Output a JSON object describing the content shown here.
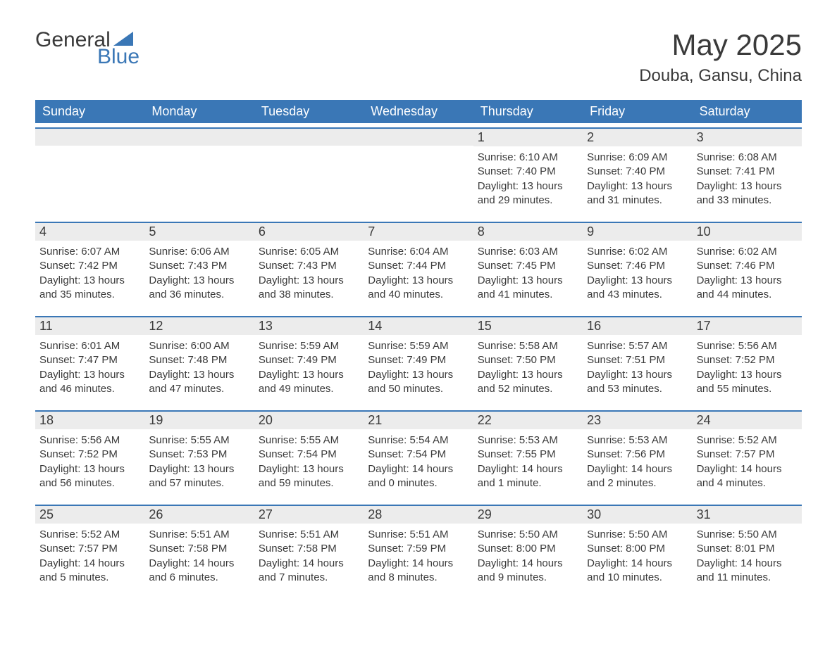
{
  "brand": {
    "text1": "General",
    "text2": "Blue",
    "text1_color": "#3a3a3a",
    "text2_color": "#3a77b6",
    "triangle_color": "#3a77b6"
  },
  "header": {
    "title": "May 2025",
    "location": "Douba, Gansu, China"
  },
  "colors": {
    "header_bg": "#3a77b6",
    "header_text": "#ffffff",
    "day_bar_bg": "#ececec",
    "day_bar_border": "#3a77b6",
    "text": "#3a3a3a",
    "page_bg": "#ffffff"
  },
  "typography": {
    "title_fontsize": 42,
    "location_fontsize": 24,
    "weekday_fontsize": 18,
    "daynum_fontsize": 18,
    "detail_fontsize": 15
  },
  "calendar": {
    "type": "table",
    "weekdays": [
      "Sunday",
      "Monday",
      "Tuesday",
      "Wednesday",
      "Thursday",
      "Friday",
      "Saturday"
    ],
    "first_weekday_index": 4,
    "days": [
      {
        "n": 1,
        "sunrise": "6:10 AM",
        "sunset": "7:40 PM",
        "daylight": "13 hours and 29 minutes."
      },
      {
        "n": 2,
        "sunrise": "6:09 AM",
        "sunset": "7:40 PM",
        "daylight": "13 hours and 31 minutes."
      },
      {
        "n": 3,
        "sunrise": "6:08 AM",
        "sunset": "7:41 PM",
        "daylight": "13 hours and 33 minutes."
      },
      {
        "n": 4,
        "sunrise": "6:07 AM",
        "sunset": "7:42 PM",
        "daylight": "13 hours and 35 minutes."
      },
      {
        "n": 5,
        "sunrise": "6:06 AM",
        "sunset": "7:43 PM",
        "daylight": "13 hours and 36 minutes."
      },
      {
        "n": 6,
        "sunrise": "6:05 AM",
        "sunset": "7:43 PM",
        "daylight": "13 hours and 38 minutes."
      },
      {
        "n": 7,
        "sunrise": "6:04 AM",
        "sunset": "7:44 PM",
        "daylight": "13 hours and 40 minutes."
      },
      {
        "n": 8,
        "sunrise": "6:03 AM",
        "sunset": "7:45 PM",
        "daylight": "13 hours and 41 minutes."
      },
      {
        "n": 9,
        "sunrise": "6:02 AM",
        "sunset": "7:46 PM",
        "daylight": "13 hours and 43 minutes."
      },
      {
        "n": 10,
        "sunrise": "6:02 AM",
        "sunset": "7:46 PM",
        "daylight": "13 hours and 44 minutes."
      },
      {
        "n": 11,
        "sunrise": "6:01 AM",
        "sunset": "7:47 PM",
        "daylight": "13 hours and 46 minutes."
      },
      {
        "n": 12,
        "sunrise": "6:00 AM",
        "sunset": "7:48 PM",
        "daylight": "13 hours and 47 minutes."
      },
      {
        "n": 13,
        "sunrise": "5:59 AM",
        "sunset": "7:49 PM",
        "daylight": "13 hours and 49 minutes."
      },
      {
        "n": 14,
        "sunrise": "5:59 AM",
        "sunset": "7:49 PM",
        "daylight": "13 hours and 50 minutes."
      },
      {
        "n": 15,
        "sunrise": "5:58 AM",
        "sunset": "7:50 PM",
        "daylight": "13 hours and 52 minutes."
      },
      {
        "n": 16,
        "sunrise": "5:57 AM",
        "sunset": "7:51 PM",
        "daylight": "13 hours and 53 minutes."
      },
      {
        "n": 17,
        "sunrise": "5:56 AM",
        "sunset": "7:52 PM",
        "daylight": "13 hours and 55 minutes."
      },
      {
        "n": 18,
        "sunrise": "5:56 AM",
        "sunset": "7:52 PM",
        "daylight": "13 hours and 56 minutes."
      },
      {
        "n": 19,
        "sunrise": "5:55 AM",
        "sunset": "7:53 PM",
        "daylight": "13 hours and 57 minutes."
      },
      {
        "n": 20,
        "sunrise": "5:55 AM",
        "sunset": "7:54 PM",
        "daylight": "13 hours and 59 minutes."
      },
      {
        "n": 21,
        "sunrise": "5:54 AM",
        "sunset": "7:54 PM",
        "daylight": "14 hours and 0 minutes."
      },
      {
        "n": 22,
        "sunrise": "5:53 AM",
        "sunset": "7:55 PM",
        "daylight": "14 hours and 1 minute."
      },
      {
        "n": 23,
        "sunrise": "5:53 AM",
        "sunset": "7:56 PM",
        "daylight": "14 hours and 2 minutes."
      },
      {
        "n": 24,
        "sunrise": "5:52 AM",
        "sunset": "7:57 PM",
        "daylight": "14 hours and 4 minutes."
      },
      {
        "n": 25,
        "sunrise": "5:52 AM",
        "sunset": "7:57 PM",
        "daylight": "14 hours and 5 minutes."
      },
      {
        "n": 26,
        "sunrise": "5:51 AM",
        "sunset": "7:58 PM",
        "daylight": "14 hours and 6 minutes."
      },
      {
        "n": 27,
        "sunrise": "5:51 AM",
        "sunset": "7:58 PM",
        "daylight": "14 hours and 7 minutes."
      },
      {
        "n": 28,
        "sunrise": "5:51 AM",
        "sunset": "7:59 PM",
        "daylight": "14 hours and 8 minutes."
      },
      {
        "n": 29,
        "sunrise": "5:50 AM",
        "sunset": "8:00 PM",
        "daylight": "14 hours and 9 minutes."
      },
      {
        "n": 30,
        "sunrise": "5:50 AM",
        "sunset": "8:00 PM",
        "daylight": "14 hours and 10 minutes."
      },
      {
        "n": 31,
        "sunrise": "5:50 AM",
        "sunset": "8:01 PM",
        "daylight": "14 hours and 11 minutes."
      }
    ],
    "labels": {
      "sunrise_prefix": "Sunrise: ",
      "sunset_prefix": "Sunset: ",
      "daylight_prefix": "Daylight: "
    }
  }
}
